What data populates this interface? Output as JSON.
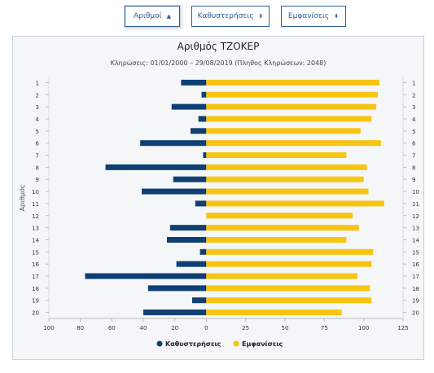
{
  "buttons": {
    "digits": "Αριθμοί",
    "delays": "Καθυστερήσεις",
    "appearances": "Εμφανίσεις"
  },
  "colors": {
    "delays": "#0f3f75",
    "appearances": "#f8c412",
    "button": "#2e5f95"
  },
  "chart_data": {
    "type": "bar",
    "orientation": "horizontal",
    "title": "Αριθμός ΤΖΟΚΕΡ",
    "subtitle": "Κληρώσεις: 01/01/2000 – 29/08/2019 (Πληθος Κληρώσεων: 2048)",
    "ylabel": "Αριθμός",
    "xlim": [
      -100,
      125
    ],
    "x_ticks": [
      -100,
      -80,
      -60,
      -40,
      -20,
      0,
      25,
      50,
      75,
      100,
      125
    ],
    "x_tick_labels": [
      "100",
      "80",
      "60",
      "40",
      "20",
      "0",
      "25",
      "50",
      "75",
      "100",
      "125"
    ],
    "categories": [
      "1",
      "2",
      "3",
      "4",
      "5",
      "6",
      "7",
      "8",
      "9",
      "10",
      "11",
      "12",
      "13",
      "14",
      "15",
      "16",
      "17",
      "18",
      "19",
      "20"
    ],
    "series": [
      {
        "name": "Καθυστερήσεις",
        "values": [
          16,
          3,
          22,
          5,
          10,
          42,
          2,
          64,
          21,
          41,
          7,
          0,
          23,
          25,
          4,
          19,
          77,
          37,
          9,
          40
        ]
      },
      {
        "name": "Εμφανίσεις",
        "values": [
          110,
          109,
          108,
          105,
          98,
          111,
          89,
          102,
          100,
          103,
          113,
          93,
          97,
          89,
          106,
          105,
          96,
          104,
          105,
          86
        ]
      }
    ],
    "legend_position": "bottom"
  }
}
